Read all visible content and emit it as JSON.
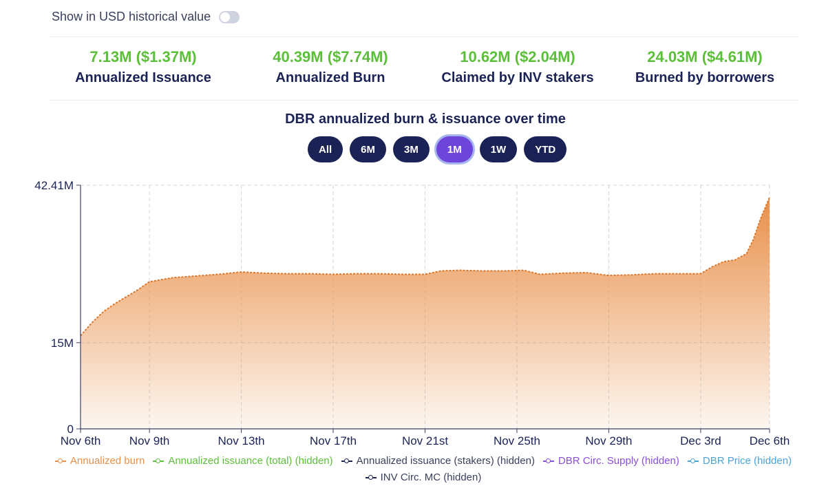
{
  "toggle": {
    "label": "Show in USD historical value",
    "on": false
  },
  "stats": [
    {
      "value": "7.13M ($1.37M)",
      "label": "Annualized Issuance"
    },
    {
      "value": "40.39M ($7.74M)",
      "label": "Annualized Burn"
    },
    {
      "value": "10.62M ($2.04M)",
      "label": "Claimed by INV stakers"
    },
    {
      "value": "24.03M ($4.61M)",
      "label": "Burned by borrowers"
    }
  ],
  "ranges": [
    "All",
    "6M",
    "3M",
    "1M",
    "1W",
    "YTD"
  ],
  "active_range": "1M",
  "chart_data": {
    "type": "area",
    "title": "DBR annualized burn & issuance over time",
    "x_ticks": [
      "Nov 6th",
      "Nov 9th",
      "Nov 13th",
      "Nov 17th",
      "Nov 21st",
      "Nov 25th",
      "Nov 29th",
      "Dec 3rd",
      "Dec 6th"
    ],
    "x_tick_days": [
      0,
      3,
      7,
      11,
      15,
      19,
      23,
      27,
      30
    ],
    "y_ticks": [
      0,
      15,
      42.41
    ],
    "y_tick_labels": [
      "0",
      "15M",
      "42.41M"
    ],
    "ylim": [
      0,
      42.41
    ],
    "xlim": [
      0,
      30
    ],
    "grid": true,
    "series": [
      {
        "name": "Annualized burn",
        "color": "#e8904a",
        "visible": true,
        "x": [
          0,
          0.5,
          1,
          1.5,
          2,
          2.5,
          3,
          4,
          5,
          6,
          7,
          8,
          9,
          10,
          11,
          12,
          13,
          14,
          15,
          15.7,
          16.5,
          17.5,
          18.5,
          19.3,
          20,
          21,
          22,
          23,
          24,
          25,
          26,
          27,
          27.5,
          28,
          28.5,
          29,
          29.3,
          29.6,
          30
        ],
        "values": [
          16.2,
          18.5,
          20.4,
          21.8,
          23.0,
          24.2,
          25.6,
          26.3,
          26.6,
          26.9,
          27.3,
          27.1,
          27.0,
          27.0,
          26.9,
          27.0,
          27.0,
          26.9,
          26.9,
          27.5,
          27.6,
          27.5,
          27.5,
          27.6,
          26.9,
          27.1,
          27.2,
          26.7,
          26.8,
          27.0,
          27.0,
          27.0,
          28.2,
          29.1,
          29.4,
          30.5,
          33.0,
          36.5,
          40.3
        ]
      },
      {
        "name": "Annualized issuance (total) (hidden)",
        "color": "#5bbf3a",
        "visible": false
      },
      {
        "name": "Annualized issuance (stakers) (hidden)",
        "color": "#1b2356",
        "visible": false
      },
      {
        "name": "DBR Circ. Supply (hidden)",
        "color": "#8a4fd6",
        "visible": false
      },
      {
        "name": "DBR Price (hidden)",
        "color": "#4aa3d9",
        "visible": false
      },
      {
        "name": "INV Circ. MC (hidden)",
        "color": "#1b2356",
        "visible": false
      }
    ]
  }
}
